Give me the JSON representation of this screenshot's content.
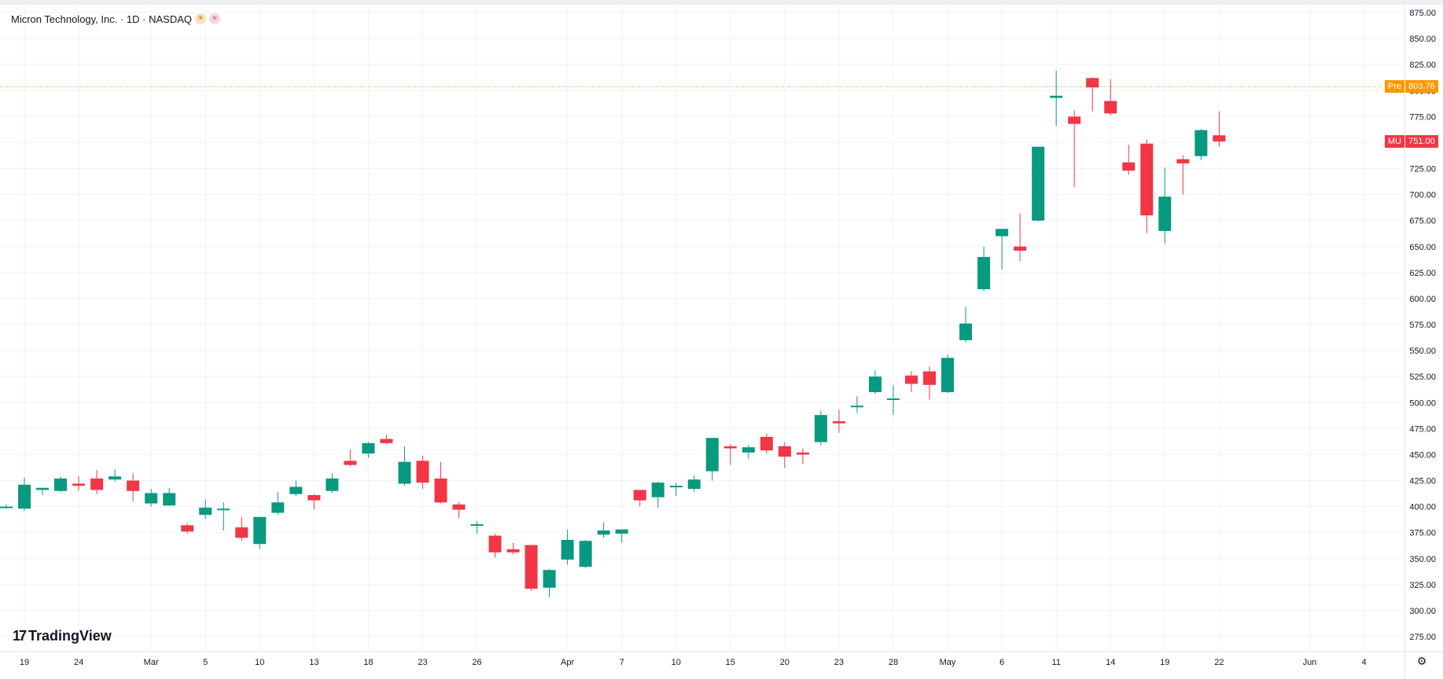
{
  "header": {
    "symbol_title": "Micron Technology, Inc. · 1D · NASDAQ",
    "sun_icon": "sun-icon",
    "wave_icon": "wave-icon"
  },
  "branding": {
    "logo_text": "TradingView"
  },
  "pre_label": {
    "tag": "Pre",
    "value": "803.76"
  },
  "last_label": {
    "tag": "MU",
    "value": "751.00"
  },
  "colors": {
    "up": "#089981",
    "down": "#f23645",
    "grid": "#f0f3fa",
    "text": "#131722",
    "pre": "#ff9800",
    "axis_text": "#131722"
  },
  "chart_data": {
    "type": "candlestick",
    "title": "Micron Technology, Inc. · 1D · NASDAQ",
    "y_axis": {
      "position": "right",
      "ylim": [
        255,
        880
      ],
      "ticks": [
        "275.00",
        "300.00",
        "325.00",
        "350.00",
        "375.00",
        "400.00",
        "425.00",
        "450.00",
        "475.00",
        "500.00",
        "525.00",
        "550.00",
        "575.00",
        "600.00",
        "625.00",
        "650.00",
        "675.00",
        "700.00",
        "725.00",
        "750.00",
        "775.00",
        "800.00",
        "825.00",
        "850.00",
        "875.00"
      ]
    },
    "x_axis": {
      "ticks": [
        {
          "label": "19",
          "i": 1
        },
        {
          "label": "24",
          "i": 4
        },
        {
          "label": "Mar",
          "i": 8
        },
        {
          "label": "5",
          "i": 11
        },
        {
          "label": "10",
          "i": 14
        },
        {
          "label": "13",
          "i": 17
        },
        {
          "label": "18",
          "i": 20
        },
        {
          "label": "23",
          "i": 23
        },
        {
          "label": "26",
          "i": 26
        },
        {
          "label": "Apr",
          "i": 31
        },
        {
          "label": "7",
          "i": 34
        },
        {
          "label": "10",
          "i": 37
        },
        {
          "label": "15",
          "i": 40
        },
        {
          "label": "20",
          "i": 43
        },
        {
          "label": "23",
          "i": 46
        },
        {
          "label": "28",
          "i": 49
        },
        {
          "label": "May",
          "i": 52
        },
        {
          "label": "6",
          "i": 55
        },
        {
          "label": "11",
          "i": 58
        },
        {
          "label": "14",
          "i": 61
        },
        {
          "label": "19",
          "i": 64
        },
        {
          "label": "22",
          "i": 67
        },
        {
          "label": "Jun",
          "i": 72
        },
        {
          "label": "4",
          "i": 75
        }
      ]
    },
    "grid": true,
    "pre_market": 803.76,
    "last": 751.0,
    "candles": [
      {
        "o": 400,
        "h": 402,
        "l": 398,
        "c": 400
      },
      {
        "o": 398,
        "h": 428,
        "l": 396,
        "c": 421
      },
      {
        "o": 416,
        "h": 418,
        "l": 411,
        "c": 418
      },
      {
        "o": 415,
        "h": 429,
        "l": 414,
        "c": 427
      },
      {
        "o": 422,
        "h": 429,
        "l": 415,
        "c": 420
      },
      {
        "o": 427,
        "h": 435,
        "l": 412,
        "c": 416
      },
      {
        "o": 426,
        "h": 436,
        "l": 424,
        "c": 429
      },
      {
        "o": 425,
        "h": 432,
        "l": 405,
        "c": 415
      },
      {
        "o": 403,
        "h": 417,
        "l": 400,
        "c": 413
      },
      {
        "o": 401,
        "h": 418,
        "l": 401,
        "c": 413
      },
      {
        "o": 382,
        "h": 384,
        "l": 374,
        "c": 376
      },
      {
        "o": 392,
        "h": 407,
        "l": 388,
        "c": 399
      },
      {
        "o": 397,
        "h": 404,
        "l": 377,
        "c": 398
      },
      {
        "o": 380,
        "h": 390,
        "l": 367,
        "c": 370
      },
      {
        "o": 364,
        "h": 390,
        "l": 359,
        "c": 390
      },
      {
        "o": 394,
        "h": 414,
        "l": 392,
        "c": 404
      },
      {
        "o": 412,
        "h": 425,
        "l": 410,
        "c": 419
      },
      {
        "o": 411,
        "h": 412,
        "l": 397,
        "c": 406
      },
      {
        "o": 415,
        "h": 432,
        "l": 413,
        "c": 427
      },
      {
        "o": 444,
        "h": 455,
        "l": 439,
        "c": 440
      },
      {
        "o": 451,
        "h": 462,
        "l": 447,
        "c": 461
      },
      {
        "o": 465,
        "h": 469,
        "l": 460,
        "c": 461
      },
      {
        "o": 422,
        "h": 458,
        "l": 420,
        "c": 443
      },
      {
        "o": 444,
        "h": 449,
        "l": 417,
        "c": 423
      },
      {
        "o": 427,
        "h": 443,
        "l": 403,
        "c": 404
      },
      {
        "o": 402,
        "h": 404,
        "l": 389,
        "c": 397
      },
      {
        "o": 383,
        "h": 386,
        "l": 374,
        "c": 383
      },
      {
        "o": 372,
        "h": 374,
        "l": 351,
        "c": 356
      },
      {
        "o": 359,
        "h": 365,
        "l": 354,
        "c": 356
      },
      {
        "o": 363,
        "h": 362,
        "l": 319,
        "c": 321
      },
      {
        "o": 322,
        "h": 340,
        "l": 313,
        "c": 339
      },
      {
        "o": 349,
        "h": 378,
        "l": 344,
        "c": 368
      },
      {
        "o": 342,
        "h": 368,
        "l": 341,
        "c": 367
      },
      {
        "o": 373,
        "h": 385,
        "l": 370,
        "c": 377
      },
      {
        "o": 374,
        "h": 378,
        "l": 365,
        "c": 378
      },
      {
        "o": 416,
        "h": 416,
        "l": 400,
        "c": 406
      },
      {
        "o": 409,
        "h": 424,
        "l": 399,
        "c": 423
      },
      {
        "o": 420,
        "h": 423,
        "l": 410,
        "c": 420
      },
      {
        "o": 417,
        "h": 430,
        "l": 414,
        "c": 426
      },
      {
        "o": 434,
        "h": 466,
        "l": 425,
        "c": 466
      },
      {
        "o": 458,
        "h": 460,
        "l": 440,
        "c": 456
      },
      {
        "o": 452,
        "h": 459,
        "l": 446,
        "c": 457
      },
      {
        "o": 467,
        "h": 470,
        "l": 451,
        "c": 454
      },
      {
        "o": 458,
        "h": 462,
        "l": 437,
        "c": 448
      },
      {
        "o": 452,
        "h": 456,
        "l": 441,
        "c": 450
      },
      {
        "o": 462,
        "h": 492,
        "l": 459,
        "c": 488
      },
      {
        "o": 482,
        "h": 493,
        "l": 471,
        "c": 480
      },
      {
        "o": 497,
        "h": 506,
        "l": 490,
        "c": 497
      },
      {
        "o": 510,
        "h": 531,
        "l": 508,
        "c": 525
      },
      {
        "o": 504,
        "h": 517,
        "l": 488,
        "c": 504
      },
      {
        "o": 526,
        "h": 530,
        "l": 510,
        "c": 518
      },
      {
        "o": 530,
        "h": 535,
        "l": 503,
        "c": 517
      },
      {
        "o": 510,
        "h": 546,
        "l": 509,
        "c": 543
      },
      {
        "o": 560,
        "h": 592,
        "l": 558,
        "c": 576
      },
      {
        "o": 609,
        "h": 650,
        "l": 607,
        "c": 640
      },
      {
        "o": 660,
        "h": 667,
        "l": 628,
        "c": 667
      },
      {
        "o": 650,
        "h": 682,
        "l": 636,
        "c": 646
      },
      {
        "o": 675,
        "h": 746,
        "l": 674,
        "c": 746
      },
      {
        "o": 793,
        "h": 819,
        "l": 766,
        "c": 795
      },
      {
        "o": 775,
        "h": 781,
        "l": 707,
        "c": 768
      },
      {
        "o": 812,
        "h": 813,
        "l": 780,
        "c": 803
      },
      {
        "o": 790,
        "h": 811,
        "l": 776,
        "c": 778
      },
      {
        "o": 731,
        "h": 748,
        "l": 719,
        "c": 723
      },
      {
        "o": 749,
        "h": 753,
        "l": 663,
        "c": 680
      },
      {
        "o": 665,
        "h": 726,
        "l": 653,
        "c": 698
      },
      {
        "o": 734,
        "h": 738,
        "l": 700,
        "c": 730
      },
      {
        "o": 737,
        "h": 763,
        "l": 733,
        "c": 762
      },
      {
        "o": 757,
        "h": 780,
        "l": 746,
        "c": 751
      }
    ]
  }
}
